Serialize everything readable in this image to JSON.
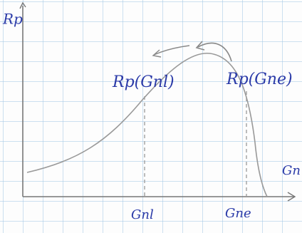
{
  "axes": {
    "y_label": "Rp",
    "x_label": "Gn"
  },
  "annotations": {
    "left_point": "Rp(Gnl)",
    "right_point": "Rp(Gne)"
  },
  "x_ticks": {
    "left": "Gnl",
    "right": "Gne"
  }
}
